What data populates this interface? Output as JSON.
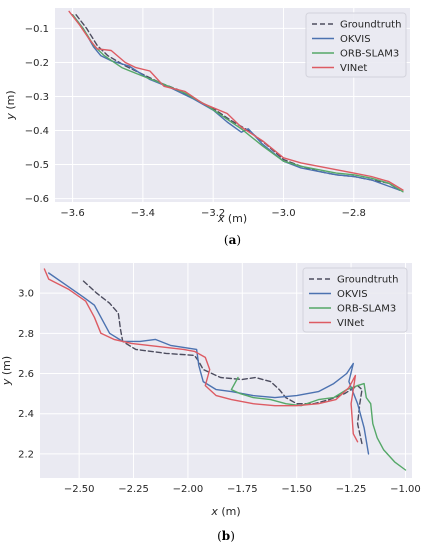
{
  "colors": {
    "background": "#eaeaf2",
    "grid": "#ffffff",
    "groundtruth": "#4c4c5e",
    "okvis": "#4c72b0",
    "orbslam3": "#55a868",
    "vinet": "#dd5b63"
  },
  "chart_data": [
    {
      "type": "line",
      "caption_letter": "a",
      "xlabel": "x",
      "xunit": "(m)",
      "ylabel": "y",
      "yunit": "(m)",
      "xlim": [
        -3.65,
        -2.64
      ],
      "ylim": [
        -0.61,
        -0.04
      ],
      "xticks": [
        -3.6,
        -3.4,
        -3.2,
        -3.0,
        -2.8
      ],
      "xtick_labels": [
        "−3.6",
        "−3.4",
        "−3.2",
        "−3.0",
        "−2.8"
      ],
      "yticks": [
        -0.1,
        -0.2,
        -0.3,
        -0.4,
        -0.5,
        -0.6
      ],
      "ytick_labels": [
        "−0.1",
        "−0.2",
        "−0.3",
        "−0.4",
        "−0.5",
        "−0.6"
      ],
      "grid": true,
      "legend_position": "top-right",
      "series": [
        {
          "name": "Groundtruth",
          "color_key": "groundtruth",
          "dashed": true,
          "points": [
            [
              -3.59,
              -0.06
            ],
            [
              -3.56,
              -0.1
            ],
            [
              -3.53,
              -0.15
            ],
            [
              -3.5,
              -0.18
            ],
            [
              -3.45,
              -0.21
            ],
            [
              -3.4,
              -0.235
            ],
            [
              -3.35,
              -0.26
            ],
            [
              -3.3,
              -0.28
            ],
            [
              -3.25,
              -0.31
            ],
            [
              -3.2,
              -0.335
            ],
            [
              -3.15,
              -0.37
            ],
            [
              -3.1,
              -0.4
            ],
            [
              -3.05,
              -0.44
            ],
            [
              -3.0,
              -0.485
            ],
            [
              -2.95,
              -0.505
            ],
            [
              -2.9,
              -0.52
            ],
            [
              -2.85,
              -0.53
            ],
            [
              -2.8,
              -0.535
            ],
            [
              -2.75,
              -0.545
            ],
            [
              -2.7,
              -0.555
            ],
            [
              -2.67,
              -0.575
            ]
          ]
        },
        {
          "name": "OKVIS",
          "color_key": "okvis",
          "dashed": false,
          "points": [
            [
              -3.6,
              -0.06
            ],
            [
              -3.57,
              -0.1
            ],
            [
              -3.54,
              -0.155
            ],
            [
              -3.52,
              -0.18
            ],
            [
              -3.49,
              -0.195
            ],
            [
              -3.44,
              -0.21
            ],
            [
              -3.38,
              -0.25
            ],
            [
              -3.32,
              -0.275
            ],
            [
              -3.26,
              -0.305
            ],
            [
              -3.2,
              -0.34
            ],
            [
              -3.16,
              -0.375
            ],
            [
              -3.12,
              -0.405
            ],
            [
              -3.1,
              -0.395
            ],
            [
              -3.06,
              -0.44
            ],
            [
              -3.0,
              -0.49
            ],
            [
              -2.95,
              -0.51
            ],
            [
              -2.9,
              -0.52
            ],
            [
              -2.85,
              -0.53
            ],
            [
              -2.8,
              -0.535
            ],
            [
              -2.75,
              -0.545
            ],
            [
              -2.71,
              -0.56
            ],
            [
              -2.67,
              -0.575
            ]
          ]
        },
        {
          "name": "ORB-SLAM3",
          "color_key": "orbslam3",
          "dashed": false,
          "points": [
            [
              -3.6,
              -0.06
            ],
            [
              -3.57,
              -0.1
            ],
            [
              -3.54,
              -0.15
            ],
            [
              -3.51,
              -0.18
            ],
            [
              -3.46,
              -0.215
            ],
            [
              -3.4,
              -0.24
            ],
            [
              -3.35,
              -0.26
            ],
            [
              -3.28,
              -0.29
            ],
            [
              -3.22,
              -0.325
            ],
            [
              -3.17,
              -0.36
            ],
            [
              -3.12,
              -0.395
            ],
            [
              -3.06,
              -0.445
            ],
            [
              -3.0,
              -0.49
            ],
            [
              -2.95,
              -0.505
            ],
            [
              -2.9,
              -0.515
            ],
            [
              -2.85,
              -0.525
            ],
            [
              -2.8,
              -0.53
            ],
            [
              -2.75,
              -0.54
            ],
            [
              -2.7,
              -0.555
            ],
            [
              -2.66,
              -0.58
            ]
          ]
        },
        {
          "name": "VINet",
          "color_key": "vinet",
          "dashed": false,
          "points": [
            [
              -3.61,
              -0.05
            ],
            [
              -3.58,
              -0.09
            ],
            [
              -3.55,
              -0.135
            ],
            [
              -3.53,
              -0.16
            ],
            [
              -3.49,
              -0.165
            ],
            [
              -3.45,
              -0.2
            ],
            [
              -3.42,
              -0.215
            ],
            [
              -3.38,
              -0.225
            ],
            [
              -3.34,
              -0.27
            ],
            [
              -3.28,
              -0.285
            ],
            [
              -3.23,
              -0.32
            ],
            [
              -3.16,
              -0.35
            ],
            [
              -3.12,
              -0.39
            ],
            [
              -3.06,
              -0.43
            ],
            [
              -3.0,
              -0.48
            ],
            [
              -2.95,
              -0.495
            ],
            [
              -2.9,
              -0.505
            ],
            [
              -2.85,
              -0.515
            ],
            [
              -2.8,
              -0.525
            ],
            [
              -2.75,
              -0.535
            ],
            [
              -2.7,
              -0.55
            ],
            [
              -2.66,
              -0.575
            ]
          ]
        }
      ]
    },
    {
      "type": "line",
      "caption_letter": "b",
      "xlabel": "x",
      "xunit": "(m)",
      "ylabel": "y",
      "yunit": "(m)",
      "xlim": [
        -2.68,
        -0.97
      ],
      "ylim": [
        2.08,
        3.15
      ],
      "xticks": [
        -2.5,
        -2.25,
        -2.0,
        -1.75,
        -1.5,
        -1.25,
        -1.0
      ],
      "xtick_labels": [
        "−2.50",
        "−2.25",
        "−2.00",
        "−1.75",
        "−1.50",
        "−1.25",
        "−1.00"
      ],
      "yticks": [
        2.2,
        2.4,
        2.6,
        2.8,
        3.0
      ],
      "ytick_labels": [
        "2.2",
        "2.4",
        "2.6",
        "2.8",
        "3.0"
      ],
      "grid": true,
      "legend_position": "top-right",
      "series": [
        {
          "name": "Groundtruth",
          "color_key": "groundtruth",
          "dashed": true,
          "points": [
            [
              -2.48,
              3.06
            ],
            [
              -2.42,
              3.0
            ],
            [
              -2.36,
              2.95
            ],
            [
              -2.32,
              2.9
            ],
            [
              -2.31,
              2.82
            ],
            [
              -2.3,
              2.76
            ],
            [
              -2.24,
              2.72
            ],
            [
              -2.1,
              2.7
            ],
            [
              -1.97,
              2.69
            ],
            [
              -1.95,
              2.66
            ],
            [
              -1.93,
              2.62
            ],
            [
              -1.85,
              2.58
            ],
            [
              -1.75,
              2.57
            ],
            [
              -1.69,
              2.58
            ],
            [
              -1.62,
              2.56
            ],
            [
              -1.58,
              2.52
            ],
            [
              -1.55,
              2.48
            ],
            [
              -1.5,
              2.45
            ],
            [
              -1.42,
              2.45
            ],
            [
              -1.35,
              2.47
            ],
            [
              -1.28,
              2.5
            ],
            [
              -1.22,
              2.54
            ],
            [
              -1.2,
              2.52
            ],
            [
              -1.21,
              2.45
            ],
            [
              -1.22,
              2.35
            ],
            [
              -1.2,
              2.25
            ]
          ]
        },
        {
          "name": "OKVIS",
          "color_key": "okvis",
          "dashed": false,
          "points": [
            [
              -2.64,
              3.1
            ],
            [
              -2.56,
              3.04
            ],
            [
              -2.48,
              2.98
            ],
            [
              -2.43,
              2.94
            ],
            [
              -2.39,
              2.86
            ],
            [
              -2.36,
              2.8
            ],
            [
              -2.3,
              2.76
            ],
            [
              -2.22,
              2.76
            ],
            [
              -2.15,
              2.77
            ],
            [
              -2.08,
              2.74
            ],
            [
              -2.02,
              2.73
            ],
            [
              -1.96,
              2.72
            ],
            [
              -1.95,
              2.64
            ],
            [
              -1.93,
              2.56
            ],
            [
              -1.87,
              2.52
            ],
            [
              -1.8,
              2.51
            ],
            [
              -1.7,
              2.49
            ],
            [
              -1.6,
              2.48
            ],
            [
              -1.5,
              2.49
            ],
            [
              -1.4,
              2.51
            ],
            [
              -1.33,
              2.55
            ],
            [
              -1.27,
              2.6
            ],
            [
              -1.24,
              2.65
            ],
            [
              -1.26,
              2.56
            ],
            [
              -1.22,
              2.45
            ],
            [
              -1.19,
              2.33
            ],
            [
              -1.17,
              2.2
            ]
          ]
        },
        {
          "name": "ORB-SLAM3",
          "color_key": "orbslam3",
          "dashed": false,
          "points": [
            [
              -1.77,
              2.58
            ],
            [
              -1.8,
              2.52
            ],
            [
              -1.76,
              2.5
            ],
            [
              -1.7,
              2.48
            ],
            [
              -1.62,
              2.47
            ],
            [
              -1.55,
              2.45
            ],
            [
              -1.48,
              2.44
            ],
            [
              -1.4,
              2.47
            ],
            [
              -1.33,
              2.48
            ],
            [
              -1.27,
              2.52
            ],
            [
              -1.22,
              2.54
            ],
            [
              -1.19,
              2.55
            ],
            [
              -1.18,
              2.48
            ],
            [
              -1.16,
              2.45
            ],
            [
              -1.15,
              2.35
            ],
            [
              -1.13,
              2.28
            ],
            [
              -1.1,
              2.22
            ],
            [
              -1.05,
              2.16
            ],
            [
              -1.0,
              2.12
            ]
          ]
        },
        {
          "name": "VINet",
          "color_key": "vinet",
          "dashed": false,
          "points": [
            [
              -2.66,
              3.12
            ],
            [
              -2.64,
              3.07
            ],
            [
              -2.55,
              3.02
            ],
            [
              -2.47,
              2.96
            ],
            [
              -2.43,
              2.88
            ],
            [
              -2.4,
              2.8
            ],
            [
              -2.34,
              2.77
            ],
            [
              -2.26,
              2.75
            ],
            [
              -2.18,
              2.74
            ],
            [
              -2.1,
              2.73
            ],
            [
              -2.02,
              2.72
            ],
            [
              -1.97,
              2.71
            ],
            [
              -1.92,
              2.68
            ],
            [
              -1.9,
              2.62
            ],
            [
              -1.92,
              2.54
            ],
            [
              -1.87,
              2.49
            ],
            [
              -1.8,
              2.47
            ],
            [
              -1.7,
              2.45
            ],
            [
              -1.6,
              2.44
            ],
            [
              -1.5,
              2.44
            ],
            [
              -1.4,
              2.45
            ],
            [
              -1.32,
              2.47
            ],
            [
              -1.26,
              2.53
            ],
            [
              -1.23,
              2.59
            ],
            [
              -1.25,
              2.45
            ],
            [
              -1.24,
              2.3
            ],
            [
              -1.22,
              2.26
            ]
          ]
        }
      ]
    }
  ]
}
